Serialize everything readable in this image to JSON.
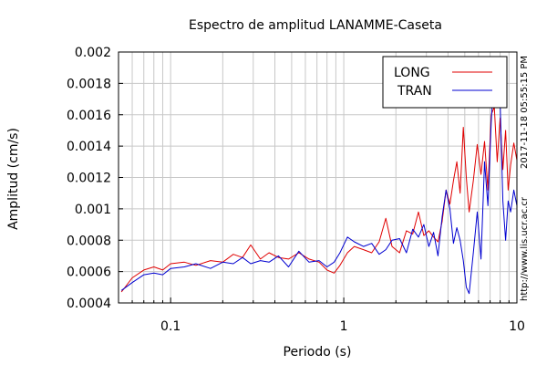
{
  "chart_data": {
    "type": "line",
    "title": "Espectro de amplitud LANAMME-Caseta",
    "xlabel": "Periodo (s)",
    "ylabel": "Amplitud (cm/s)",
    "xscale": "log",
    "xlim": [
      0.05,
      10
    ],
    "ylim": [
      0.0004,
      0.002
    ],
    "grid": true,
    "legend_position": "top-right",
    "x_tick_labels": [
      "0.1",
      "1",
      "10"
    ],
    "y_tick_labels": [
      "0.0004",
      "0.0006",
      "0.0008",
      "0.001",
      "0.0012",
      "0.0014",
      "0.0016",
      "0.0018",
      "0.002"
    ],
    "side_label_right": "2017-11-18 05:55:15 PM",
    "side_label_left": "http://www.lis.ucr.ac.cr",
    "series": [
      {
        "name": "LONG",
        "color": "#e00000",
        "x": [
          0.052,
          0.06,
          0.07,
          0.08,
          0.09,
          0.1,
          0.12,
          0.14,
          0.17,
          0.2,
          0.23,
          0.26,
          0.29,
          0.33,
          0.37,
          0.42,
          0.48,
          0.55,
          0.63,
          0.72,
          0.8,
          0.88,
          0.95,
          1.05,
          1.15,
          1.3,
          1.45,
          1.6,
          1.75,
          1.9,
          2.1,
          2.3,
          2.5,
          2.7,
          2.9,
          3.1,
          3.3,
          3.5,
          3.7,
          3.9,
          4.1,
          4.3,
          4.5,
          4.7,
          4.9,
          5.1,
          5.3,
          5.6,
          5.9,
          6.2,
          6.5,
          6.8,
          7.1,
          7.4,
          7.7,
          8.0,
          8.3,
          8.6,
          8.9,
          9.2,
          9.6,
          10.0
        ],
        "values": [
          0.00047,
          0.00056,
          0.00061,
          0.00063,
          0.00061,
          0.00065,
          0.00066,
          0.00064,
          0.00067,
          0.00066,
          0.00071,
          0.00069,
          0.00077,
          0.00068,
          0.00072,
          0.00069,
          0.00068,
          0.00072,
          0.00068,
          0.00066,
          0.00061,
          0.00059,
          0.00064,
          0.00072,
          0.00076,
          0.00074,
          0.00072,
          0.00079,
          0.00094,
          0.00076,
          0.00072,
          0.00086,
          0.00084,
          0.00098,
          0.00083,
          0.00086,
          0.00082,
          0.00079,
          0.00092,
          0.00112,
          0.00103,
          0.00118,
          0.0013,
          0.0011,
          0.00152,
          0.0012,
          0.00098,
          0.00118,
          0.00141,
          0.00122,
          0.00143,
          0.00112,
          0.0016,
          0.00165,
          0.0013,
          0.00158,
          0.00125,
          0.0015,
          0.00112,
          0.00128,
          0.00142,
          0.00131
        ]
      },
      {
        "name": "TRAN",
        "color": "#0000d0",
        "x": [
          0.052,
          0.06,
          0.07,
          0.08,
          0.09,
          0.1,
          0.12,
          0.14,
          0.17,
          0.2,
          0.23,
          0.26,
          0.29,
          0.33,
          0.37,
          0.42,
          0.48,
          0.55,
          0.63,
          0.72,
          0.8,
          0.88,
          0.95,
          1.05,
          1.15,
          1.3,
          1.45,
          1.6,
          1.75,
          1.9,
          2.1,
          2.3,
          2.5,
          2.7,
          2.9,
          3.1,
          3.3,
          3.5,
          3.7,
          3.9,
          4.1,
          4.3,
          4.5,
          4.7,
          4.9,
          5.1,
          5.3,
          5.6,
          5.9,
          6.2,
          6.5,
          6.8,
          7.1,
          7.4,
          7.7,
          8.0,
          8.3,
          8.6,
          8.9,
          9.2,
          9.6,
          10.0
        ],
        "values": [
          0.00048,
          0.00053,
          0.00058,
          0.00059,
          0.00058,
          0.00062,
          0.00063,
          0.00065,
          0.00062,
          0.00066,
          0.00065,
          0.00069,
          0.00065,
          0.00067,
          0.00066,
          0.0007,
          0.00063,
          0.00073,
          0.00066,
          0.00067,
          0.00063,
          0.00066,
          0.00072,
          0.00082,
          0.00079,
          0.00076,
          0.00078,
          0.00071,
          0.00074,
          0.0008,
          0.00081,
          0.00072,
          0.00087,
          0.00082,
          0.0009,
          0.00076,
          0.00085,
          0.0007,
          0.00095,
          0.00112,
          0.001,
          0.00078,
          0.00088,
          0.0008,
          0.00067,
          0.0005,
          0.00046,
          0.00072,
          0.00098,
          0.00068,
          0.0013,
          0.00102,
          0.00155,
          0.0019,
          0.0017,
          0.00168,
          0.00105,
          0.0008,
          0.00105,
          0.00098,
          0.00112,
          0.00102
        ]
      }
    ]
  }
}
